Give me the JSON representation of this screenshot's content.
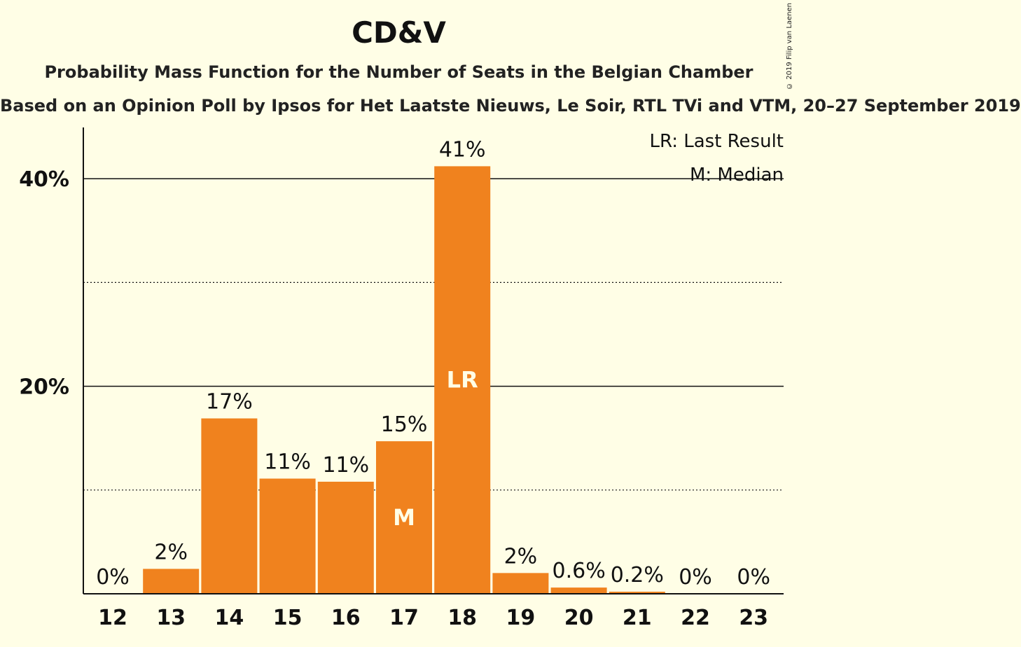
{
  "chart_data": {
    "type": "bar",
    "title": "CD&V",
    "subtitle": "Probability Mass Function for the Number of Seats in the Belgian Chamber",
    "subsubtitle": "Based on an Opinion Poll by Ipsos for Het Laatste Nieuws, Le Soir, RTL TVi and VTM, 20–27 September 2019",
    "copyright": "© 2019 Filip van Laenen",
    "categories": [
      "12",
      "13",
      "14",
      "15",
      "16",
      "17",
      "18",
      "19",
      "20",
      "21",
      "22",
      "23"
    ],
    "values": [
      0,
      2.4,
      16.9,
      11.1,
      10.8,
      14.7,
      41.2,
      2.0,
      0.6,
      0.2,
      0,
      0
    ],
    "value_labels": [
      "0%",
      "2%",
      "17%",
      "11%",
      "11%",
      "15%",
      "41%",
      "2%",
      "0.6%",
      "0.2%",
      "0%",
      "0%"
    ],
    "median_category": "17",
    "last_result_category": "18",
    "median_marker": "M",
    "last_result_marker": "LR",
    "ylim": [
      0,
      45
    ],
    "y_major_ticks": [
      20,
      40
    ],
    "y_major_tick_labels": [
      "20%",
      "40%"
    ],
    "y_minor_gridlines": [
      10,
      30
    ],
    "bar_color": "#F0821E",
    "legend": {
      "position": "top-right",
      "items": [
        "LR: Last Result",
        "M: Median"
      ]
    }
  }
}
